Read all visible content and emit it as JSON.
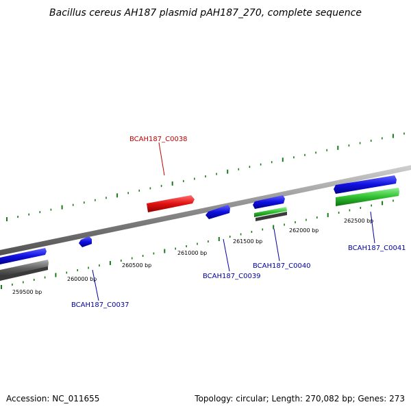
{
  "title": "Bacillus cereus AH187 plasmid pAH187_270, complete sequence",
  "footer": {
    "accession": "Accession: NC_011655",
    "summary": "Topology: circular; Length: 270,082 bp; Genes: 273"
  },
  "colors": {
    "backbone": "#8a8a8a",
    "tick": "#1a7a1a",
    "gene_blue": "#1010e0",
    "gene_red": "#e01010",
    "gene_green": "#30c030",
    "gene_gray": "#606060",
    "label_blue": "#0000a0",
    "label_red": "#c00000"
  },
  "scale_labels": [
    {
      "text": "259500 bp"
    },
    {
      "text": "260000 bp"
    },
    {
      "text": "260500 bp"
    },
    {
      "text": "261000 bp"
    },
    {
      "text": "261500 bp"
    },
    {
      "text": "262000 bp"
    },
    {
      "text": "262500 bp"
    }
  ],
  "gene_labels": [
    {
      "name": "BCAH187_C0038",
      "color": "red"
    },
    {
      "name": "BCAH187_C0037",
      "color": "blue"
    },
    {
      "name": "BCAH187_C0039",
      "color": "blue"
    },
    {
      "name": "BCAH187_C0040",
      "color": "blue"
    },
    {
      "name": "BCAH187_C0041",
      "color": "blue"
    }
  ]
}
